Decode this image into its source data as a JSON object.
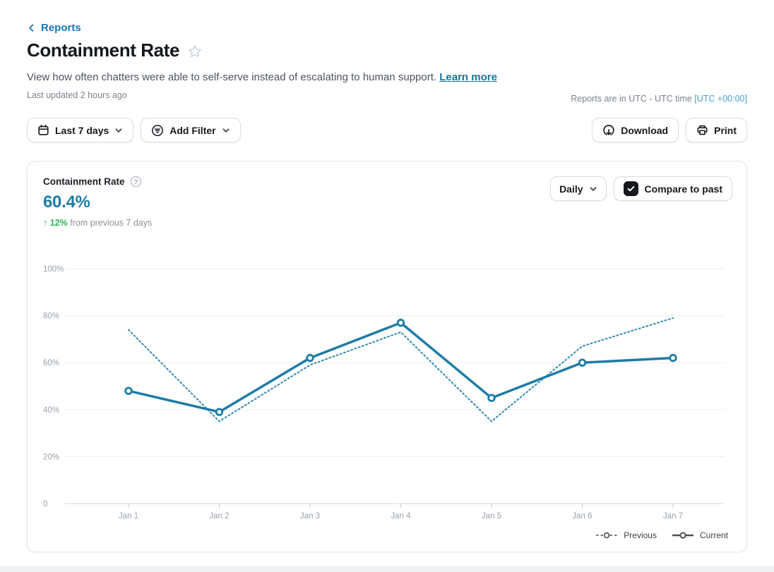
{
  "page": {
    "breadcrumb_label": "Reports",
    "title": "Containment Rate",
    "description": "View how often chatters were able to self-serve instead of escalating to human support.",
    "learn_more_label": "Learn more",
    "last_updated": "Last updated 2 hours ago",
    "timezone_note": "Reports are in UTC - UTC time",
    "timezone_value": "[UTC +00:00]"
  },
  "toolbar": {
    "date_range_label": "Last 7 days",
    "add_filter_label": "Add Filter",
    "download_label": "Download",
    "print_label": "Print"
  },
  "card": {
    "metric_label": "Containment Rate",
    "metric_value": "60.4%",
    "delta_text": "↑ 12%",
    "delta_suffix": "from previous 7 days",
    "interval_label": "Daily",
    "compare_label": "Compare to past",
    "compare_checked": true
  },
  "chart_data": {
    "type": "line",
    "title": "Containment Rate",
    "categories": [
      "Jan 1",
      "Jan 2",
      "Jan 3",
      "Jan 4",
      "Jan 5",
      "Jan 6",
      "Jan 7"
    ],
    "series": [
      {
        "name": "Previous",
        "style": "dotted",
        "values": [
          74,
          35,
          59,
          73,
          35,
          67,
          79
        ]
      },
      {
        "name": "Current",
        "style": "solid",
        "values": [
          48,
          39,
          62,
          77,
          45,
          60,
          62
        ]
      }
    ],
    "unit": "%",
    "ylim": [
      0,
      100
    ],
    "yticks": [
      {
        "label": "100%",
        "value": 100
      },
      {
        "label": "80%",
        "value": 80
      },
      {
        "label": "60%",
        "value": 60
      },
      {
        "label": "40%",
        "value": 40
      },
      {
        "label": "20%",
        "value": 20
      },
      {
        "label": "0",
        "value": 0
      }
    ],
    "grid": true,
    "legend_position": "bottom-right",
    "colors": {
      "current": "#1e7ca6",
      "previous": "#3088b3",
      "legend_swatch": "#4b5057"
    }
  },
  "colors": {
    "accent_teal": "#1e7ca6",
    "link_blue": "#1878b8",
    "timezone_link_blue": "#45a0d2",
    "positive_green": "#2fb357"
  }
}
